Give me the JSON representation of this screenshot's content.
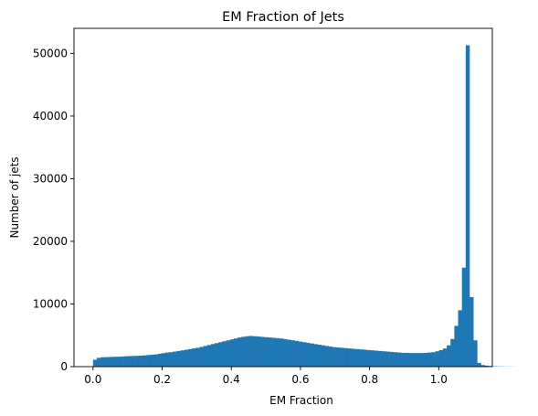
{
  "chart_data": {
    "type": "bar",
    "title": "EM Fraction of Jets",
    "xlabel": "EM Fraction",
    "ylabel": "Number of jets",
    "xlim": [
      -0.055,
      1.155
    ],
    "ylim": [
      0,
      54000
    ],
    "grid": false,
    "bar_color": "#1f77b4",
    "xticks": [
      {
        "value": 0.0,
        "label": "0.0"
      },
      {
        "value": 0.2,
        "label": "0.2"
      },
      {
        "value": 0.4,
        "label": "0.4"
      },
      {
        "value": 0.6,
        "label": "0.6"
      },
      {
        "value": 0.8,
        "label": "0.8"
      },
      {
        "value": 1.0,
        "label": "1.0"
      }
    ],
    "yticks": [
      {
        "value": 0,
        "label": "0"
      },
      {
        "value": 10000,
        "label": "10000"
      },
      {
        "value": 20000,
        "label": "20000"
      },
      {
        "value": 30000,
        "label": "30000"
      },
      {
        "value": 40000,
        "label": "40000"
      },
      {
        "value": 50000,
        "label": "50000"
      }
    ],
    "bins": {
      "start": 0.0,
      "width": 0.011
    },
    "values": [
      1100,
      1400,
      1500,
      1520,
      1540,
      1560,
      1580,
      1600,
      1650,
      1680,
      1700,
      1720,
      1750,
      1800,
      1850,
      1900,
      1950,
      2050,
      2150,
      2250,
      2300,
      2400,
      2500,
      2600,
      2700,
      2800,
      2900,
      3000,
      3150,
      3300,
      3450,
      3600,
      3750,
      3900,
      4050,
      4200,
      4350,
      4500,
      4650,
      4750,
      4850,
      4900,
      4850,
      4800,
      4750,
      4700,
      4650,
      4600,
      4550,
      4500,
      4400,
      4300,
      4200,
      4100,
      4000,
      3900,
      3800,
      3700,
      3600,
      3500,
      3400,
      3300,
      3200,
      3100,
      3050,
      3000,
      2950,
      2900,
      2850,
      2800,
      2750,
      2700,
      2650,
      2600,
      2550,
      2500,
      2450,
      2400,
      2350,
      2300,
      2250,
      2200,
      2200,
      2180,
      2170,
      2160,
      2170,
      2200,
      2250,
      2300,
      2450,
      2650,
      2900,
      3400,
      4400,
      6500,
      9000,
      15800,
      51300,
      11100,
      4200,
      600,
      250,
      150,
      100,
      60,
      40,
      30,
      20,
      15,
      10
    ]
  }
}
